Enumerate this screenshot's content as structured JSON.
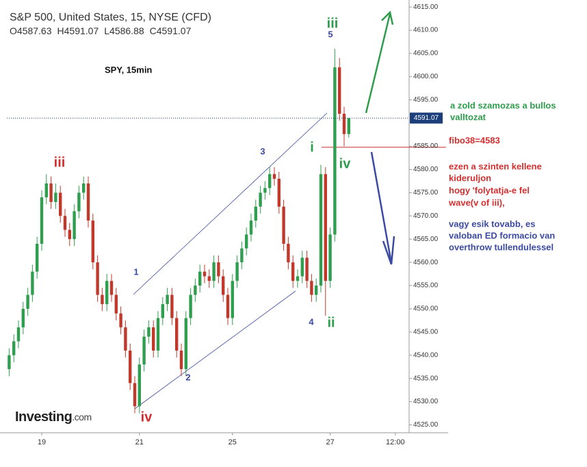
{
  "chart_data": {
    "type": "candlestick",
    "title": "S&P 500, United States, 15, NYSE (CFD)",
    "subtitle": "SPY, 15min",
    "logo": "Investing",
    "logo_suffix": ".com",
    "ohlc_prefixes": [
      "O",
      "H",
      "L",
      "C"
    ],
    "up_color": "#2f9e4f",
    "down_color": "#c0392b",
    "x": [
      0,
      1,
      2,
      3,
      4,
      5,
      6,
      7,
      8,
      9,
      10,
      11,
      12,
      13,
      14,
      15,
      16,
      17,
      18,
      19,
      20,
      21,
      22,
      23,
      24,
      25,
      26,
      27,
      28,
      29,
      30,
      31,
      32,
      33,
      34,
      35,
      36,
      37,
      38,
      39,
      40,
      41,
      42,
      43,
      44,
      45,
      46,
      47,
      48,
      49,
      50,
      51,
      52,
      53,
      54,
      55,
      56,
      57,
      58,
      59,
      60,
      61,
      62,
      63,
      64,
      65,
      66,
      67,
      68,
      69,
      70,
      71,
      72,
      73
    ],
    "open": [
      4537,
      4540,
      4543,
      4546,
      4550,
      4553,
      4558,
      4564,
      4574,
      4577,
      4573,
      4575,
      4570,
      4567,
      4565,
      4571,
      4575,
      4577,
      4569,
      4560,
      4553,
      4551,
      4556,
      4553,
      4549,
      4546,
      4541,
      4534,
      4529,
      4538,
      4544,
      4546,
      4541,
      4548,
      4551,
      4553,
      4548,
      4541,
      4537,
      4548,
      4553,
      4555,
      4558,
      4557,
      4556,
      4560,
      4557,
      4553,
      4548,
      4556,
      4560,
      4563,
      4566,
      4569,
      4572,
      4575,
      4576,
      4579,
      4578,
      4572,
      4564,
      4560,
      4556,
      4557,
      4561,
      4556,
      4553,
      4555,
      4579,
      4556,
      4566,
      4602,
      4592,
      4587.63
    ],
    "high": [
      4541.5,
      4544.5,
      4547.5,
      4551.5,
      4554.5,
      4559.5,
      4565.5,
      4575.5,
      4579,
      4578.5,
      4577,
      4576.5,
      4571.5,
      4568.5,
      4572.5,
      4576.5,
      4578.5,
      4578.5,
      4570.5,
      4561.5,
      4554.5,
      4557.5,
      4557.5,
      4554.5,
      4550.5,
      4547.5,
      4542.5,
      4535.5,
      4539.5,
      4545.5,
      4547.5,
      4547.5,
      4549.5,
      4552.5,
      4554.5,
      4554.5,
      4549.5,
      4542.5,
      4549.5,
      4554.5,
      4556.5,
      4559.5,
      4559.5,
      4558.5,
      4561.5,
      4561.5,
      4558.5,
      4554.5,
      4557.5,
      4561.5,
      4564.5,
      4567.5,
      4570.5,
      4573.5,
      4576.5,
      4577.5,
      4580.5,
      4580.5,
      4579.5,
      4573.5,
      4565.5,
      4561.5,
      4558.5,
      4562.5,
      4562.5,
      4557.5,
      4556.5,
      4581,
      4580.5,
      4567.5,
      4606,
      4604,
      4593.5,
      4591.07
    ],
    "low": [
      4535.5,
      4538.5,
      4541.5,
      4544.5,
      4548.5,
      4551.5,
      4556.5,
      4562.5,
      4572.5,
      4571.5,
      4571.5,
      4568.5,
      4565.5,
      4563.5,
      4563.5,
      4569.5,
      4573.5,
      4567.5,
      4558.5,
      4551.5,
      4549.5,
      4549.5,
      4551.5,
      4547.5,
      4544.5,
      4539.5,
      4532.5,
      4527.5,
      4527.5,
      4536.5,
      4542.5,
      4539.5,
      4539.5,
      4546.5,
      4549.5,
      4546.5,
      4539.5,
      4535.5,
      4535.5,
      4546.5,
      4551.5,
      4553.5,
      4555.5,
      4554.5,
      4554.5,
      4555.5,
      4551.5,
      4546.5,
      4546.5,
      4554.5,
      4558.5,
      4561.5,
      4564.5,
      4567.5,
      4570.5,
      4573.5,
      4574.5,
      4576.5,
      4570.5,
      4562.5,
      4558.5,
      4554.5,
      4554.5,
      4555.5,
      4554.5,
      4551.5,
      4551.5,
      4553.5,
      4548.5,
      4554.5,
      4564.5,
      4590.5,
      4585,
      4586.88
    ],
    "close": [
      4540,
      4543,
      4546,
      4550,
      4553,
      4558,
      4564,
      4574,
      4577,
      4573,
      4575,
      4570,
      4567,
      4565,
      4571,
      4575,
      4577,
      4569,
      4560,
      4553,
      4551,
      4556,
      4553,
      4549,
      4546,
      4541,
      4534,
      4529,
      4538,
      4544,
      4546,
      4541,
      4548,
      4551,
      4553,
      4548,
      4541,
      4537,
      4548,
      4553,
      4555,
      4558,
      4557,
      4556,
      4560,
      4557,
      4553,
      4548,
      4556,
      4560,
      4563,
      4566,
      4569,
      4572,
      4575,
      4576,
      4579,
      4578,
      4572,
      4564,
      4560,
      4556,
      4557,
      4561,
      4556,
      4553,
      4555,
      4579,
      4556,
      4566,
      4602,
      4592,
      4587.63,
      4591.07
    ],
    "xlim": [
      -0.5,
      86.5
    ],
    "xticks": [
      {
        "value": 7,
        "label": "19"
      },
      {
        "value": 28,
        "label": "21"
      },
      {
        "value": 48,
        "label": "25"
      },
      {
        "value": 69,
        "label": "27"
      },
      {
        "value": 83,
        "label": "12:00"
      }
    ],
    "ylim": [
      4523.3,
      4616.5
    ],
    "yticks": [
      {
        "value": 4525,
        "label": "4525.00"
      },
      {
        "value": 4530,
        "label": "4530.00"
      },
      {
        "value": 4535,
        "label": "4535.00"
      },
      {
        "value": 4540,
        "label": "4540.00"
      },
      {
        "value": 4545,
        "label": "4545.00"
      },
      {
        "value": 4550,
        "label": "4550.00"
      },
      {
        "value": 4555,
        "label": "4555.00"
      },
      {
        "value": 4560,
        "label": "4560.00"
      },
      {
        "value": 4565,
        "label": "4565.00"
      },
      {
        "value": 4570,
        "label": "4570.00"
      },
      {
        "value": 4575,
        "label": "4575.00"
      },
      {
        "value": 4580,
        "label": "4580.00"
      },
      {
        "value": 4585,
        "label": "4585.00"
      },
      {
        "value": 4595,
        "label": "4595.00"
      },
      {
        "value": 4600,
        "label": "4600.00"
      },
      {
        "value": 4605,
        "label": "4605.00"
      },
      {
        "value": 4610,
        "label": "4610.00"
      },
      {
        "value": 4615,
        "label": "4615.00"
      }
    ],
    "wave_labels": [
      {
        "text": "iii",
        "color": "#d32f2f"
      },
      {
        "text": "iv",
        "color": "#d32f2f"
      },
      {
        "text": "1",
        "color": "#3a4aa0"
      },
      {
        "text": "2",
        "color": "#3a4aa0"
      },
      {
        "text": "3",
        "color": "#3a4aa0"
      },
      {
        "text": "4",
        "color": "#3a4aa0"
      },
      {
        "text": "5",
        "color": "#3a4aa0"
      },
      {
        "text": "iii",
        "color": "#2e9d4b"
      },
      {
        "text": "i",
        "color": "#2e9d4b"
      },
      {
        "text": "iv",
        "color": "#2e9d4b"
      },
      {
        "text": "ii",
        "color": "#2e9d4b"
      }
    ],
    "annotations": [
      {
        "text": "a zold szamozas a bullos",
        "color": "#2e9d4b"
      },
      {
        "text": "valltozat",
        "color": "#2e9d4b"
      },
      {
        "text": "fibo38=4583",
        "color": "#d32f2f"
      },
      {
        "text": "ezen a szinten kellene",
        "color": "#d32f2f"
      },
      {
        "text": "kideruljon",
        "color": "#d32f2f"
      },
      {
        "text": "hogy 'folytatja-e fel",
        "color": "#d32f2f"
      },
      {
        "text": "wave(v of iii),",
        "color": "#d32f2f"
      },
      {
        "text": "vagy esik tovabb, es",
        "color": "#3a4aa0"
      },
      {
        "text": "valoban ED formacio van",
        "color": "#3a4aa0"
      },
      {
        "text": "overthrow tullendulessel",
        "color": "#3a4aa0"
      }
    ]
  }
}
